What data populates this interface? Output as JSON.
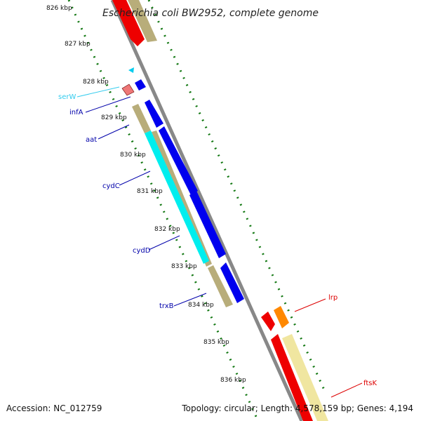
{
  "title": "Escherichia coli BW2952, complete genome",
  "footer": {
    "accession": "Accession: NC_012759",
    "summary": "Topology: circular; Length: 4,578,159 bp; Genes: 4,194"
  },
  "ticks": [
    "826 kbp",
    "827 kbp",
    "828 kbp",
    "829 kbp",
    "830 kbp",
    "831 kbp",
    "832 kbp",
    "833 kbp",
    "834 kbp",
    "835 kbp",
    "836 kbp"
  ],
  "gene_labels": [
    {
      "name": "serW",
      "color": "#33ccee"
    },
    {
      "name": "infA",
      "color": "#0000aa"
    },
    {
      "name": "aat",
      "color": "#0000aa"
    },
    {
      "name": "cydC",
      "color": "#0000aa"
    },
    {
      "name": "cydD",
      "color": "#0000aa"
    },
    {
      "name": "trxB",
      "color": "#0000aa"
    },
    {
      "name": "lrp",
      "color": "#dd0000"
    },
    {
      "name": "ftsK",
      "color": "#dd0000"
    }
  ],
  "colors": {
    "backbone": "#888888",
    "tick_dots": "#117711",
    "cds_forward": "#0000ee",
    "cds_reverse": "#ee0000",
    "orf_forward": "#b8ad7a",
    "orf_reverse": "#f0e6a0",
    "trna": "#00eeee",
    "rrna_pink": "#ee7777",
    "orange": "#ff8800"
  }
}
